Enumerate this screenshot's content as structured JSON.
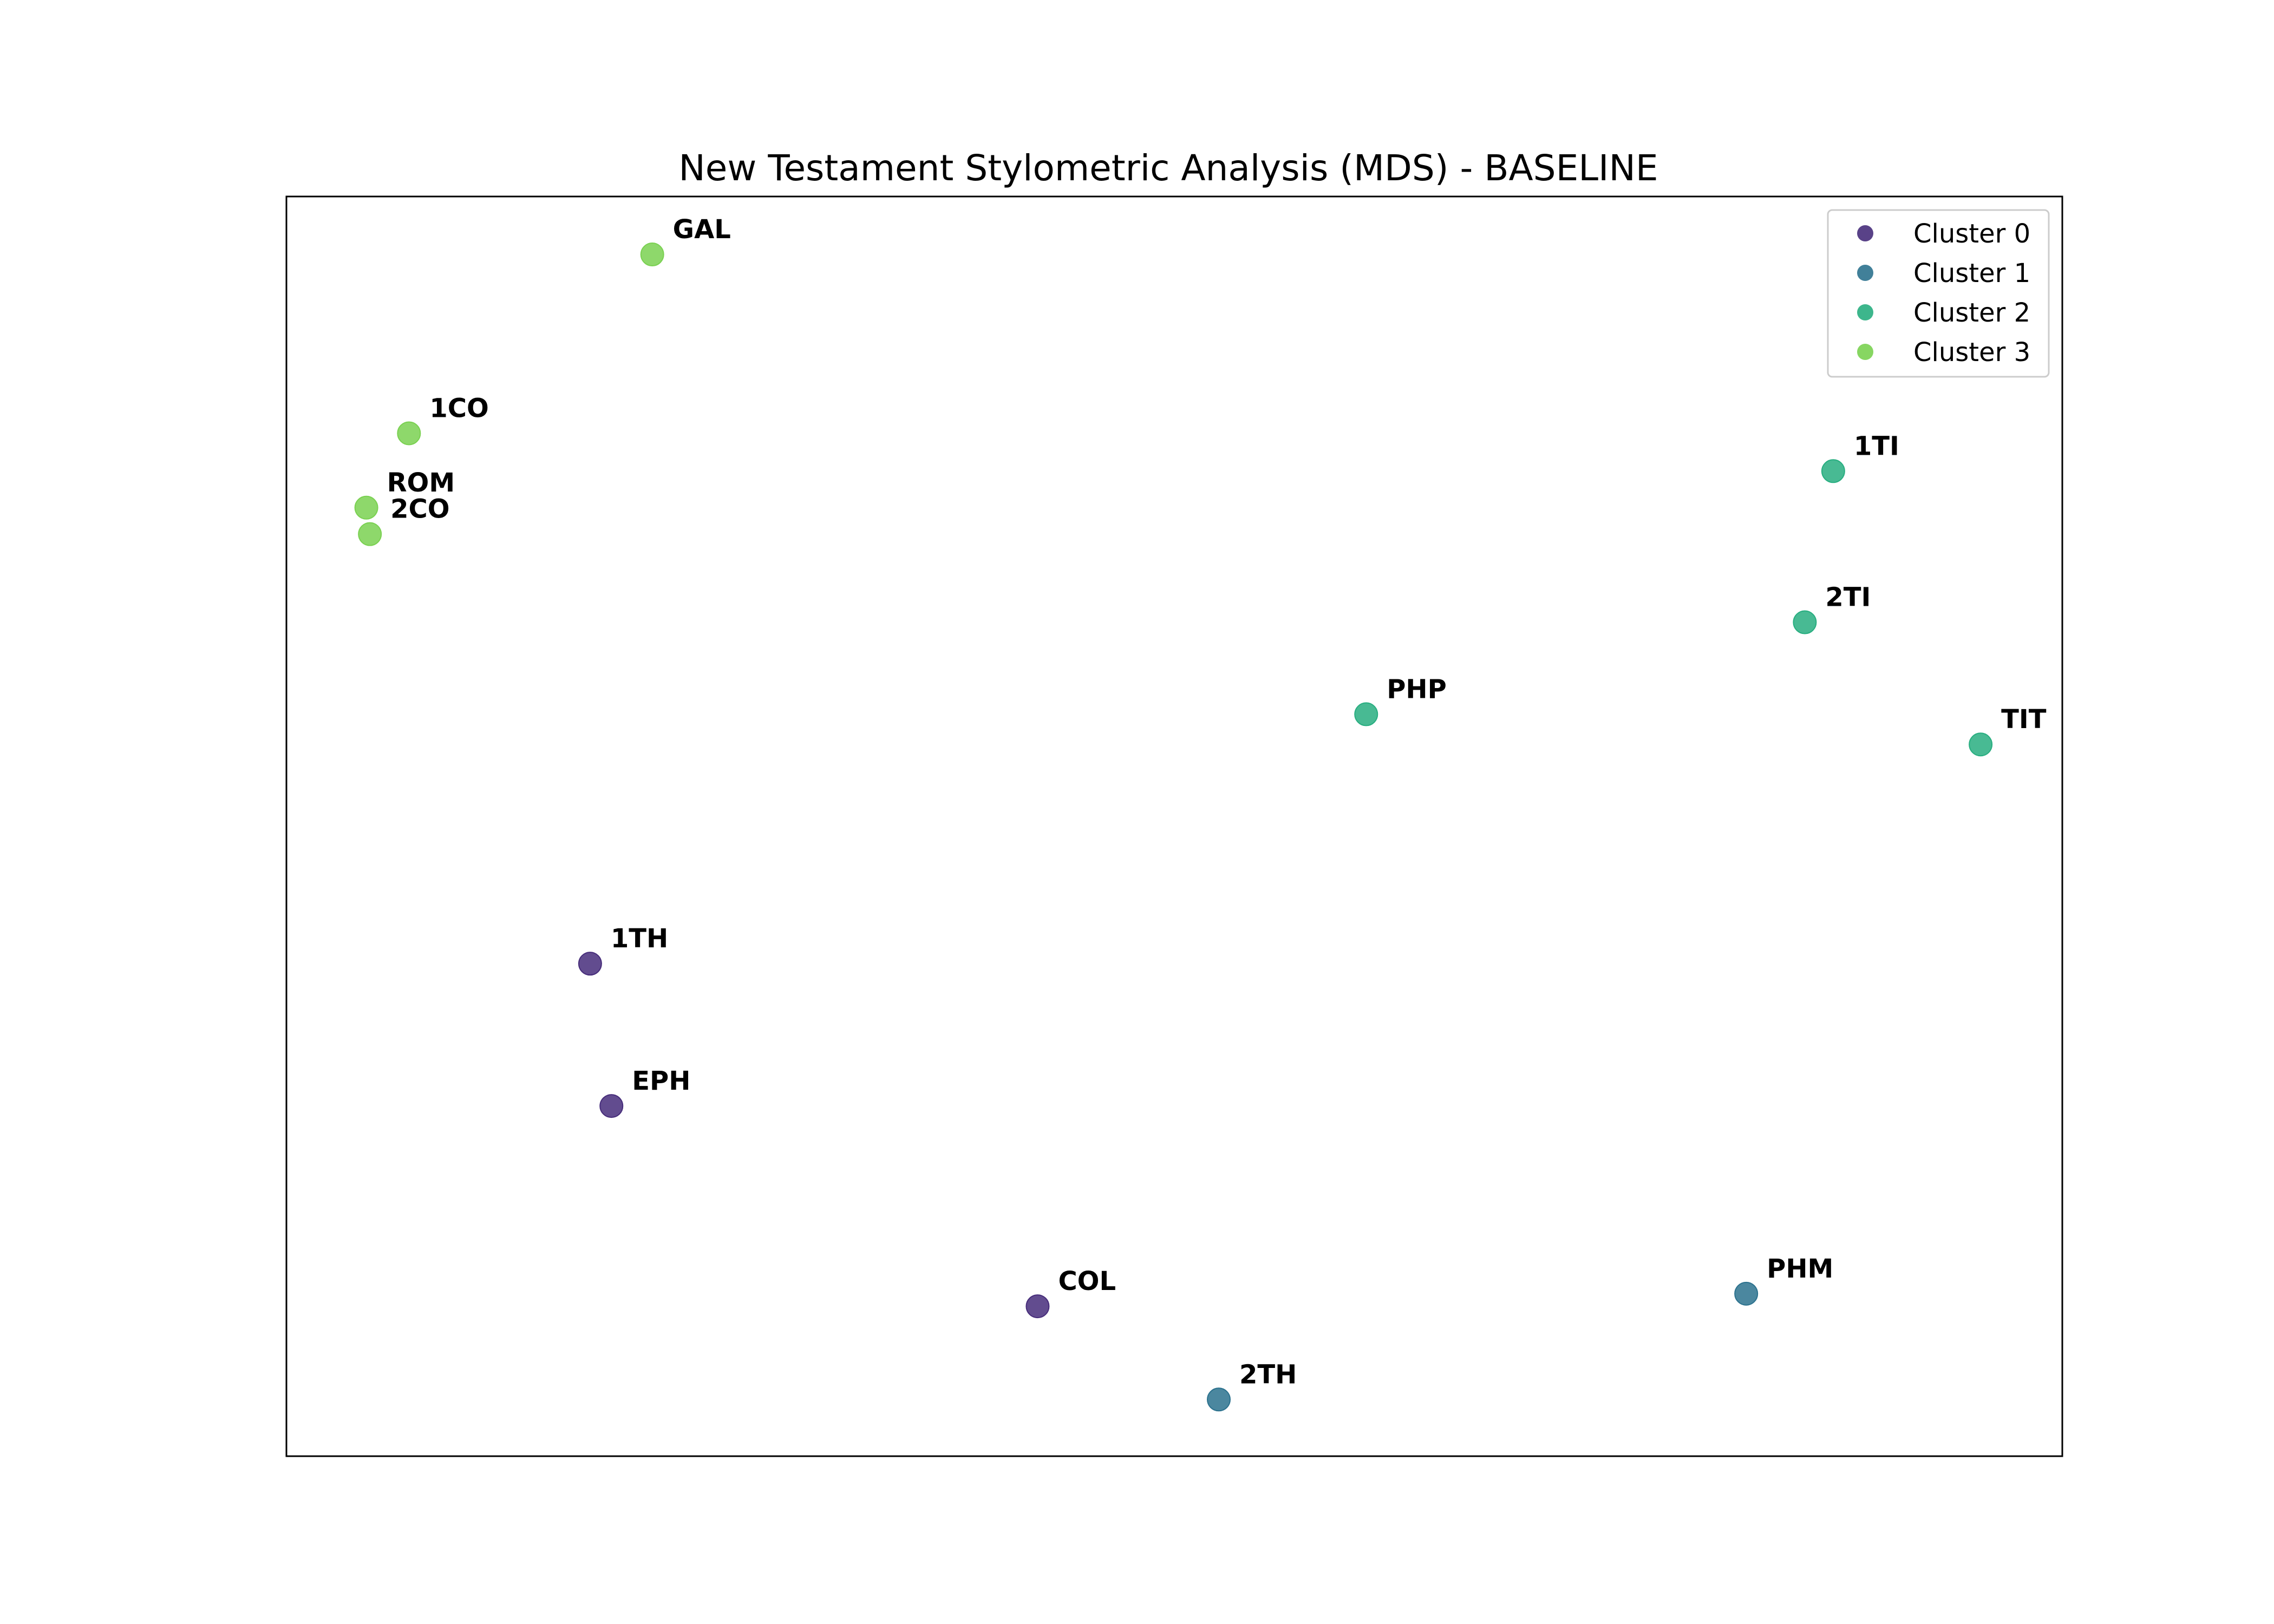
{
  "chart_data": {
    "type": "scatter",
    "title": "New Testament Stylometric Analysis (MDS) - BASELINE",
    "xlabel": "",
    "ylabel": "",
    "xlim": [
      0,
      100
    ],
    "ylim": [
      0,
      100
    ],
    "grid": false,
    "axis_ticks": false,
    "legend_position": "top-right",
    "series": [
      {
        "name": "Cluster 0",
        "color": "#472d7b",
        "points": [
          {
            "label": "1TH",
            "x": 17.1,
            "y": 39.1
          },
          {
            "label": "EPH",
            "x": 18.3,
            "y": 27.8
          },
          {
            "label": "COL",
            "x": 42.3,
            "y": 11.9
          }
        ]
      },
      {
        "name": "Cluster 1",
        "color": "#2c728e",
        "points": [
          {
            "label": "PHM",
            "x": 82.2,
            "y": 12.9
          },
          {
            "label": "2TH",
            "x": 52.5,
            "y": 4.5
          }
        ]
      },
      {
        "name": "Cluster 2",
        "color": "#28ae80",
        "points": [
          {
            "label": "1TI",
            "x": 87.1,
            "y": 78.2
          },
          {
            "label": "2TI",
            "x": 85.5,
            "y": 66.2
          },
          {
            "label": "PHP",
            "x": 60.8,
            "y": 58.9
          },
          {
            "label": "TIT",
            "x": 95.4,
            "y": 56.5
          }
        ]
      },
      {
        "name": "Cluster 3",
        "color": "#7ad151",
        "points": [
          {
            "label": "GAL",
            "x": 20.6,
            "y": 95.4
          },
          {
            "label": "1CO",
            "x": 6.9,
            "y": 81.2
          },
          {
            "label": "ROM",
            "x": 4.5,
            "y": 75.3
          },
          {
            "label": "2CO",
            "x": 4.7,
            "y": 73.2
          }
        ]
      }
    ]
  }
}
